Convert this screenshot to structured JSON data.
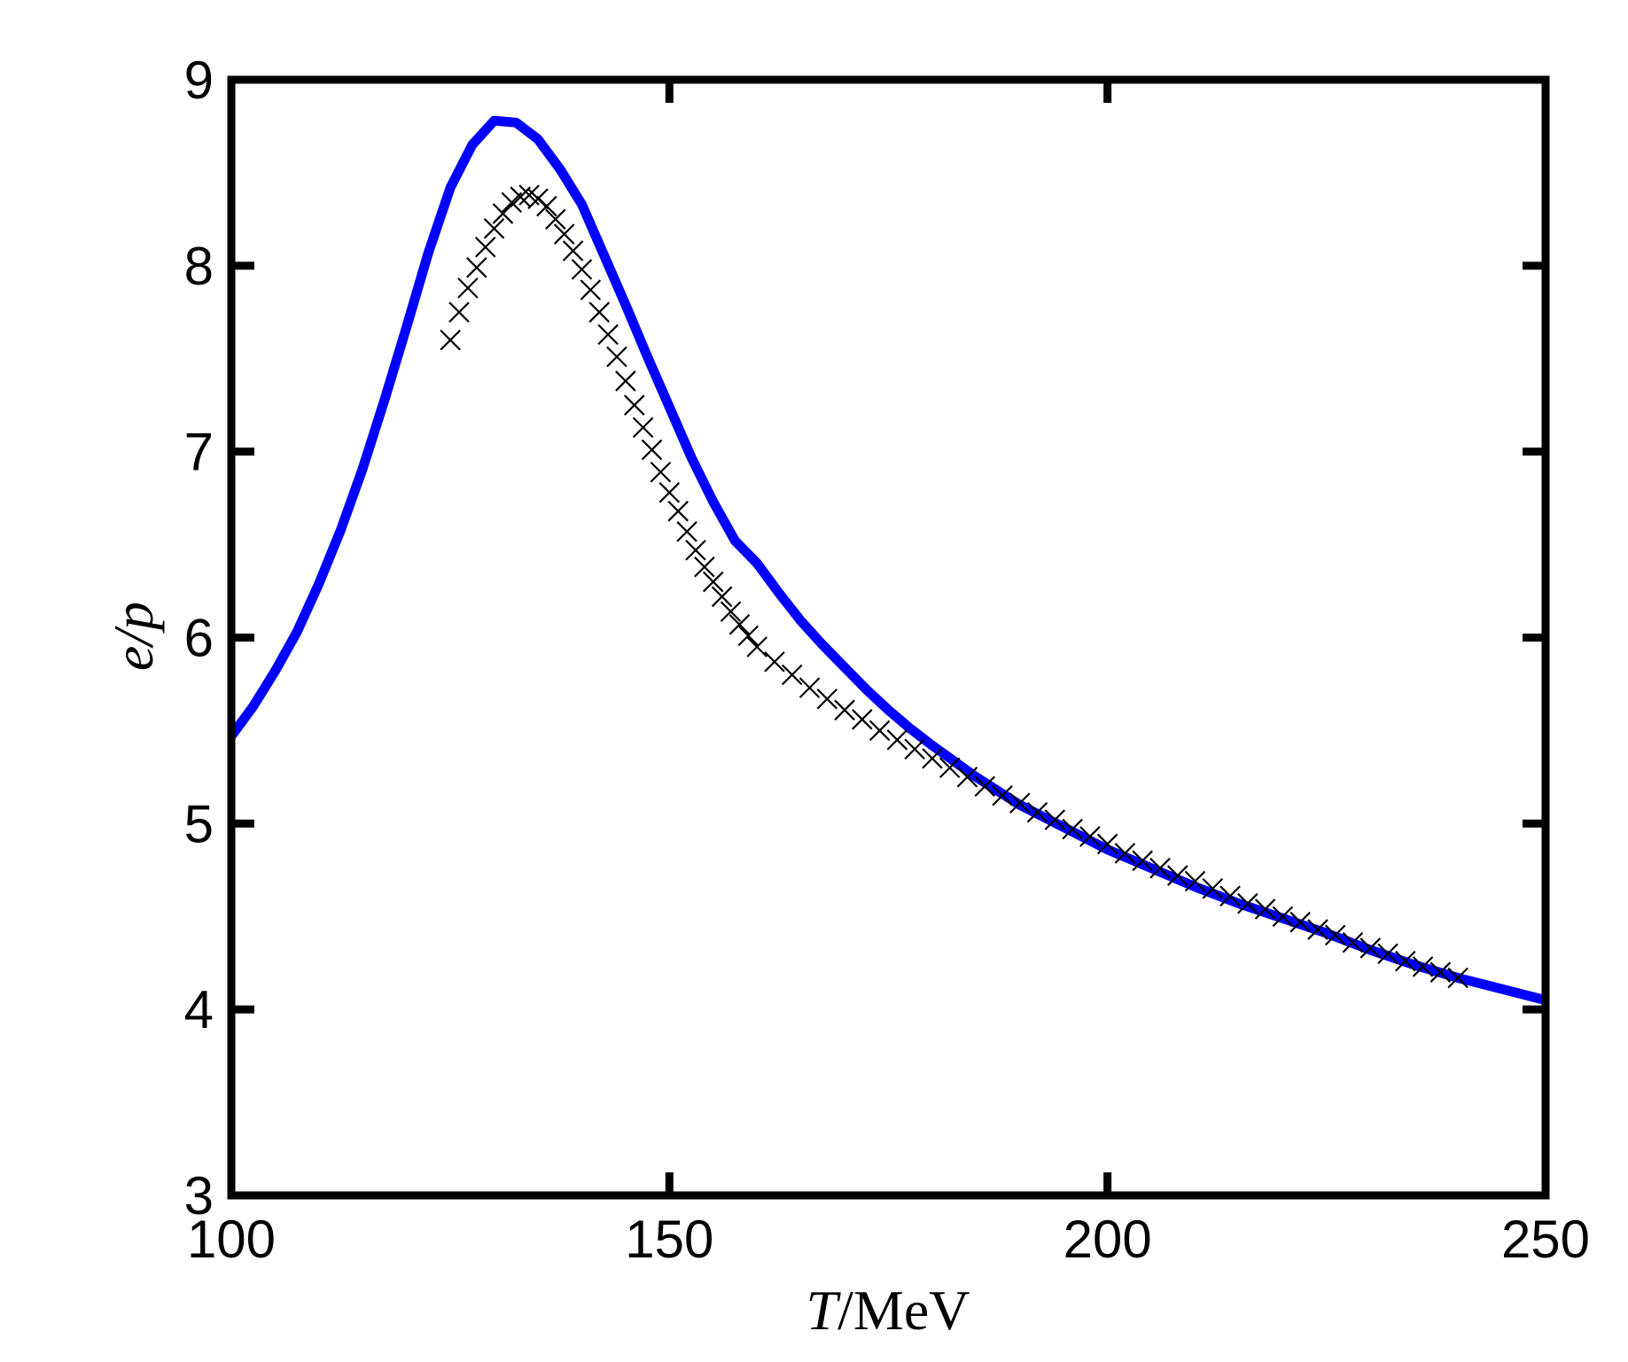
{
  "chart_data": {
    "type": "line",
    "xlabel_italic": "T",
    "xlabel_rest": "/MeV",
    "ylabel": "e/p",
    "xlim": [
      100,
      250
    ],
    "ylim": [
      3,
      9
    ],
    "xticks": [
      100,
      150,
      200,
      250
    ],
    "yticks": [
      3,
      4,
      5,
      6,
      7,
      8,
      9
    ],
    "grid": false,
    "legend": "none",
    "series": [
      {
        "style": "line",
        "color": "#0000ff",
        "x": [
          100,
          102.5,
          105,
          107.5,
          110,
          112.5,
          115,
          117.5,
          120,
          122.5,
          125,
          127.5,
          130,
          132.5,
          135,
          137.5,
          140,
          142.5,
          145,
          147.5,
          150,
          152.5,
          155,
          157.5,
          160,
          162.5,
          165,
          167.5,
          170,
          172.5,
          175,
          177.5,
          180,
          185,
          190,
          195,
          200,
          205,
          210,
          215,
          220,
          225,
          230,
          235,
          240,
          245,
          250
        ],
        "y": [
          5.47,
          5.63,
          5.82,
          6.03,
          6.29,
          6.58,
          6.91,
          7.28,
          7.67,
          8.07,
          8.42,
          8.65,
          8.78,
          8.77,
          8.68,
          8.52,
          8.33,
          8.06,
          7.79,
          7.51,
          7.24,
          6.97,
          6.73,
          6.52,
          6.4,
          6.24,
          6.09,
          5.96,
          5.84,
          5.72,
          5.61,
          5.51,
          5.42,
          5.25,
          5.1,
          4.98,
          4.86,
          4.76,
          4.66,
          4.57,
          4.49,
          4.41,
          4.32,
          4.24,
          4.17,
          4.11,
          4.05
        ]
      },
      {
        "style": "x-markers",
        "color": "#000000",
        "x": [
          125,
          126,
          127,
          128,
          129,
          130,
          131,
          132,
          133,
          134,
          135,
          136,
          137,
          138,
          139,
          140,
          141,
          142,
          143,
          144,
          145,
          146,
          147,
          148,
          149,
          150,
          151,
          152,
          153,
          154,
          155,
          156,
          157,
          158,
          159,
          160,
          162,
          164,
          166,
          168,
          170,
          172,
          174,
          176,
          178,
          180,
          182,
          184,
          186,
          188,
          190,
          192,
          194,
          196,
          198,
          200,
          202,
          204,
          206,
          208,
          210,
          212,
          214,
          216,
          218,
          220,
          222,
          224,
          226,
          228,
          230,
          232,
          234,
          236,
          238,
          240
        ],
        "y": [
          7.6,
          7.75,
          7.88,
          7.99,
          8.1,
          8.2,
          8.28,
          8.34,
          8.37,
          8.38,
          8.36,
          8.32,
          8.25,
          8.17,
          8.08,
          7.98,
          7.87,
          7.75,
          7.63,
          7.51,
          7.38,
          7.25,
          7.13,
          7.01,
          6.89,
          6.78,
          6.68,
          6.57,
          6.47,
          6.38,
          6.3,
          6.22,
          6.14,
          6.07,
          6.01,
          5.95,
          5.87,
          5.8,
          5.73,
          5.67,
          5.61,
          5.56,
          5.5,
          5.45,
          5.4,
          5.35,
          5.3,
          5.25,
          5.2,
          5.15,
          5.11,
          5.06,
          5.02,
          4.97,
          4.93,
          4.89,
          4.84,
          4.8,
          4.76,
          4.72,
          4.69,
          4.65,
          4.61,
          4.57,
          4.54,
          4.5,
          4.47,
          4.43,
          4.4,
          4.36,
          4.33,
          4.3,
          4.26,
          4.23,
          4.2,
          4.17
        ]
      }
    ]
  }
}
